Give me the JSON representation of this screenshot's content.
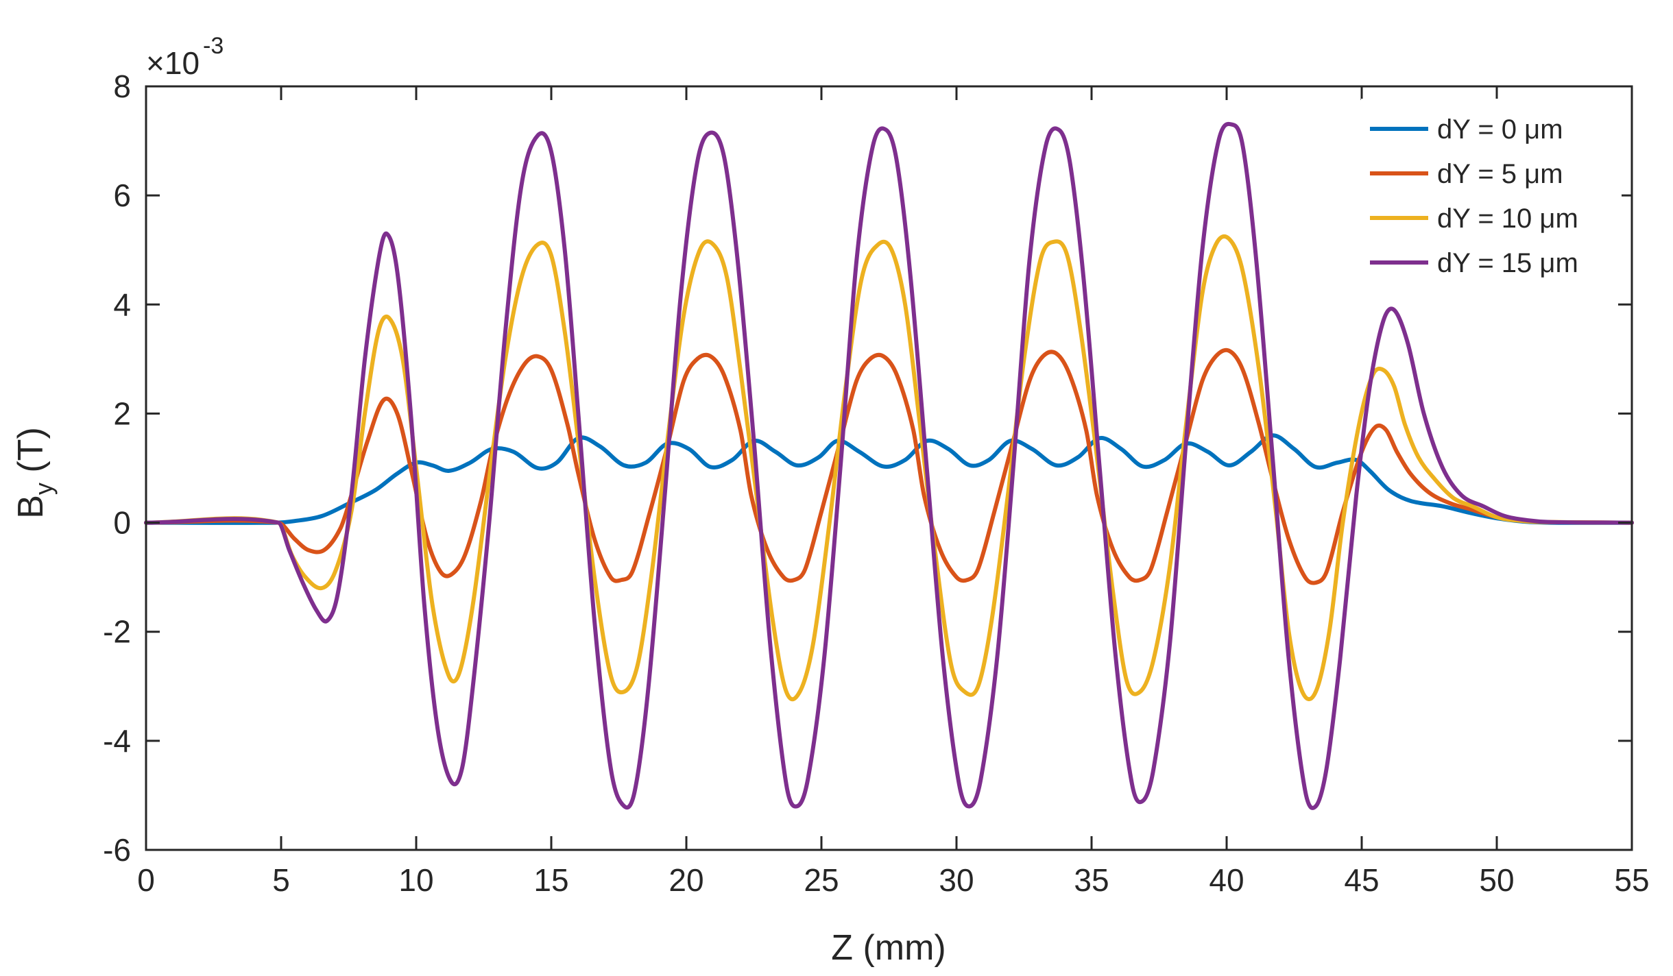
{
  "chart_data": {
    "type": "line",
    "title": "",
    "xlabel": "Z (mm)",
    "ylabel_main": "B",
    "ylabel_sub": "y",
    "ylabel_unit": " (T)",
    "y_exponent_prefix": "×10",
    "y_exponent_power": "-3",
    "xlim": [
      0,
      55
    ],
    "ylim": [
      -6,
      8
    ],
    "xticks": [
      0,
      5,
      10,
      15,
      20,
      25,
      30,
      35,
      40,
      45,
      50,
      55
    ],
    "xtick_labels": [
      "0",
      "5",
      "10",
      "15",
      "20",
      "25",
      "30",
      "35",
      "40",
      "45",
      "50",
      "55"
    ],
    "yticks": [
      -6,
      -4,
      -2,
      0,
      2,
      4,
      6,
      8
    ],
    "ytick_labels": [
      "-6",
      "-4",
      "-2",
      "0",
      "2",
      "4",
      "6",
      "8"
    ],
    "grid": false,
    "legend_position": "top-right",
    "series": [
      {
        "name": "dY = 0 μm",
        "color": "#0072BD",
        "x": [
          0,
          4.8,
          5.5,
          6.5,
          7.5,
          8.5,
          9.3,
          10.0,
          10.6,
          11.2,
          12.0,
          12.8,
          13.6,
          14.5,
          15.2,
          16.0,
          16.8,
          17.7,
          18.5,
          19.3,
          20.1,
          20.9,
          21.7,
          22.5,
          23.3,
          24.1,
          24.9,
          25.6,
          26.4,
          27.3,
          28.1,
          28.9,
          29.7,
          30.5,
          31.2,
          32.0,
          32.8,
          33.7,
          34.5,
          35.3,
          36.1,
          36.9,
          37.7,
          38.5,
          39.3,
          40.1,
          40.9,
          41.7,
          42.5,
          43.3,
          44.1,
          44.8,
          45.3,
          46.0,
          46.8,
          48.0,
          49.0,
          50.0,
          51.0,
          52.0,
          55.0
        ],
        "values": [
          0,
          0,
          0.03,
          0.12,
          0.35,
          0.6,
          0.9,
          1.1,
          1.05,
          0.95,
          1.1,
          1.35,
          1.3,
          1.0,
          1.1,
          1.55,
          1.4,
          1.05,
          1.1,
          1.45,
          1.35,
          1.02,
          1.15,
          1.5,
          1.3,
          1.05,
          1.2,
          1.5,
          1.3,
          1.03,
          1.15,
          1.5,
          1.35,
          1.05,
          1.15,
          1.5,
          1.35,
          1.05,
          1.2,
          1.55,
          1.35,
          1.03,
          1.15,
          1.45,
          1.3,
          1.05,
          1.3,
          1.6,
          1.35,
          1.02,
          1.1,
          1.15,
          0.95,
          0.6,
          0.4,
          0.3,
          0.18,
          0.08,
          0.02,
          0.0,
          0
        ]
      },
      {
        "name": "dY = 5 μm",
        "color": "#D95319",
        "x": [
          0,
          4.9,
          5.5,
          6.0,
          6.6,
          7.2,
          7.6,
          8.2,
          8.8,
          9.3,
          9.8,
          10.4,
          10.9,
          11.3,
          11.8,
          12.4,
          12.8,
          13.4,
          14.0,
          14.5,
          15.0,
          15.6,
          16.0,
          16.6,
          17.2,
          17.6,
          18.0,
          18.6,
          19.3,
          19.9,
          20.4,
          20.9,
          21.4,
          22.0,
          22.4,
          23.0,
          23.6,
          24.0,
          24.4,
          25.0,
          25.7,
          26.3,
          26.8,
          27.3,
          27.8,
          28.4,
          28.8,
          29.4,
          30.0,
          30.4,
          30.8,
          31.4,
          32.1,
          32.7,
          33.2,
          33.7,
          34.2,
          34.8,
          35.2,
          35.8,
          36.4,
          36.8,
          37.2,
          37.8,
          38.5,
          39.1,
          39.6,
          40.1,
          40.6,
          41.2,
          41.7,
          42.3,
          42.9,
          43.3,
          43.7,
          44.3,
          45.0,
          45.5,
          45.9,
          46.3,
          46.8,
          47.5,
          48.3,
          49.0,
          50.0,
          51.0,
          52.0,
          55.0
        ],
        "values": [
          0,
          0,
          -0.3,
          -0.5,
          -0.5,
          -0.1,
          0.5,
          1.5,
          2.25,
          2.0,
          1.0,
          -0.3,
          -0.9,
          -0.95,
          -0.6,
          0.4,
          1.3,
          2.3,
          2.9,
          3.05,
          2.8,
          1.8,
          0.9,
          -0.3,
          -1.0,
          -1.05,
          -0.9,
          0.1,
          1.4,
          2.6,
          3.0,
          3.05,
          2.7,
          1.7,
          0.5,
          -0.5,
          -1.0,
          -1.05,
          -0.85,
          0.2,
          1.5,
          2.6,
          3.0,
          3.05,
          2.7,
          1.7,
          0.5,
          -0.5,
          -1.0,
          -1.05,
          -0.85,
          0.2,
          1.5,
          2.6,
          3.05,
          3.1,
          2.7,
          1.7,
          0.5,
          -0.5,
          -1.0,
          -1.05,
          -0.85,
          0.2,
          1.5,
          2.6,
          3.05,
          3.15,
          2.8,
          1.8,
          0.8,
          -0.3,
          -1.0,
          -1.1,
          -0.9,
          0.2,
          1.3,
          1.75,
          1.7,
          1.3,
          0.9,
          0.55,
          0.35,
          0.25,
          0.1,
          0.03,
          0.01,
          0
        ]
      },
      {
        "name": "dY = 10 μm",
        "color": "#EDB120",
        "x": [
          0,
          4.9,
          5.4,
          5.9,
          6.5,
          7.0,
          7.6,
          8.1,
          8.6,
          9.0,
          9.5,
          10.0,
          10.6,
          11.2,
          11.6,
          12.1,
          12.7,
          13.3,
          13.9,
          14.5,
          15.0,
          15.5,
          16.0,
          16.6,
          17.2,
          17.7,
          18.2,
          18.7,
          19.3,
          19.9,
          20.5,
          21.0,
          21.5,
          22.0,
          22.6,
          23.2,
          23.7,
          24.2,
          24.7,
          25.3,
          25.9,
          26.5,
          27.1,
          27.6,
          28.1,
          28.6,
          29.2,
          29.8,
          30.3,
          30.8,
          31.3,
          31.9,
          32.5,
          33.1,
          33.6,
          34.1,
          34.6,
          35.2,
          35.8,
          36.3,
          36.8,
          37.3,
          37.9,
          38.5,
          39.1,
          39.6,
          40.1,
          40.6,
          41.2,
          41.8,
          42.3,
          42.8,
          43.3,
          43.8,
          44.3,
          44.9,
          45.4,
          45.8,
          46.2,
          46.6,
          47.1,
          47.7,
          48.4,
          49.1,
          50.0,
          51.0,
          52.0,
          55.0
        ],
        "values": [
          0,
          0,
          -0.6,
          -1.0,
          -1.2,
          -0.9,
          0.2,
          2.0,
          3.5,
          3.75,
          3.0,
          1.0,
          -1.5,
          -2.8,
          -2.75,
          -1.5,
          0.8,
          3.0,
          4.5,
          5.1,
          4.9,
          3.5,
          1.5,
          -1.0,
          -2.8,
          -3.1,
          -2.6,
          -1.0,
          1.5,
          3.8,
          5.0,
          5.1,
          4.5,
          2.8,
          0.5,
          -1.8,
          -3.1,
          -3.1,
          -2.2,
          0.0,
          2.5,
          4.5,
          5.1,
          5.0,
          4.0,
          2.0,
          -0.5,
          -2.6,
          -3.1,
          -3.0,
          -1.8,
          0.5,
          3.0,
          4.8,
          5.15,
          4.9,
          3.5,
          1.2,
          -1.3,
          -2.9,
          -3.1,
          -2.5,
          -0.8,
          1.8,
          4.2,
          5.1,
          5.2,
          4.6,
          2.8,
          0.3,
          -2.0,
          -3.1,
          -3.1,
          -2.0,
          0.0,
          1.8,
          2.7,
          2.8,
          2.5,
          1.8,
          1.2,
          0.8,
          0.45,
          0.3,
          0.1,
          0.03,
          0.01,
          0
        ]
      },
      {
        "name": "dY = 15 μm",
        "color": "#7E2F8E",
        "x": [
          0,
          4.9,
          5.3,
          5.8,
          6.3,
          6.7,
          7.1,
          7.6,
          8.1,
          8.6,
          8.9,
          9.3,
          9.8,
          10.3,
          10.8,
          11.3,
          11.7,
          12.1,
          12.7,
          13.3,
          13.9,
          14.5,
          15.0,
          15.5,
          16.0,
          16.6,
          17.2,
          17.7,
          18.1,
          18.6,
          19.2,
          19.8,
          20.4,
          20.9,
          21.4,
          21.9,
          22.5,
          23.1,
          23.7,
          24.1,
          24.5,
          25.1,
          25.7,
          26.3,
          26.9,
          27.4,
          27.8,
          28.3,
          28.9,
          29.5,
          30.1,
          30.5,
          30.9,
          31.5,
          32.1,
          32.7,
          33.3,
          33.8,
          34.2,
          34.7,
          35.3,
          35.9,
          36.5,
          36.9,
          37.3,
          37.9,
          38.5,
          39.1,
          39.7,
          40.2,
          40.6,
          41.1,
          41.7,
          42.3,
          42.9,
          43.3,
          43.7,
          44.2,
          44.8,
          45.3,
          45.8,
          46.2,
          46.7,
          47.3,
          48.0,
          48.7,
          49.5,
          50.3,
          51.2,
          52.0,
          55.0
        ],
        "values": [
          0,
          0,
          -0.5,
          -1.1,
          -1.6,
          -1.8,
          -1.3,
          0.5,
          3.0,
          4.8,
          5.3,
          4.6,
          2.0,
          -1.5,
          -3.8,
          -4.75,
          -4.5,
          -3.0,
          0.0,
          3.5,
          6.2,
          7.1,
          6.8,
          5.0,
          2.0,
          -1.8,
          -4.5,
          -5.2,
          -4.9,
          -3.0,
          0.5,
          4.2,
          6.6,
          7.15,
          6.7,
          4.8,
          1.5,
          -2.2,
          -4.8,
          -5.2,
          -4.7,
          -2.5,
          1.0,
          4.8,
          6.9,
          7.2,
          6.6,
          4.5,
          1.0,
          -2.5,
          -4.8,
          -5.2,
          -4.7,
          -2.5,
          1.0,
          4.8,
          6.9,
          7.2,
          6.6,
          4.5,
          1.0,
          -2.5,
          -4.8,
          -5.1,
          -4.5,
          -2.2,
          1.5,
          5.0,
          7.0,
          7.3,
          6.9,
          4.8,
          1.2,
          -2.5,
          -4.9,
          -5.2,
          -4.5,
          -2.5,
          0.5,
          2.5,
          3.7,
          3.9,
          3.3,
          2.0,
          1.0,
          0.5,
          0.3,
          0.12,
          0.04,
          0.01,
          0
        ]
      }
    ]
  }
}
